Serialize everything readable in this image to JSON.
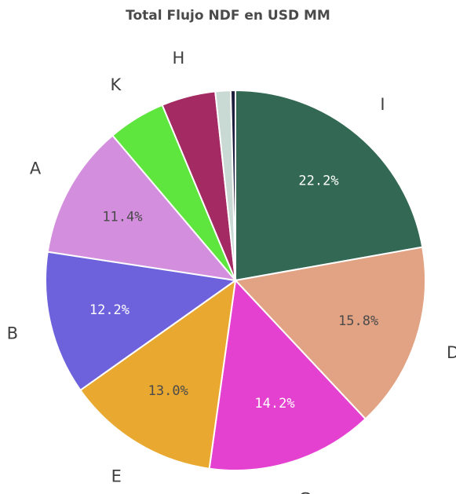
{
  "chart_data": {
    "type": "pie",
    "title": "Total Flujo NDF en USD MM",
    "slices": [
      {
        "label": "I",
        "value": 22.2,
        "value_label": "22.2%",
        "color": "#336854",
        "text_color": "#ffffff"
      },
      {
        "label": "D",
        "value": 15.8,
        "value_label": "15.8%",
        "color": "#e1a384",
        "text_color": "#4a4a4a"
      },
      {
        "label": "G",
        "value": 14.2,
        "value_label": "14.2%",
        "color": "#e441d1",
        "text_color": "#ffffff"
      },
      {
        "label": "E",
        "value": 13.0,
        "value_label": "13.0%",
        "color": "#e9a931",
        "text_color": "#4a4a4a"
      },
      {
        "label": "B",
        "value": 12.2,
        "value_label": "12.2%",
        "color": "#6e62dc",
        "text_color": "#ffffff"
      },
      {
        "label": "A",
        "value": 11.4,
        "value_label": "11.4%",
        "color": "#d38fdd",
        "text_color": "#4a4a4a"
      },
      {
        "label": "K",
        "value": 4.9,
        "value_label": "",
        "color": "#5ee63f",
        "text_color": "#4a4a4a"
      },
      {
        "label": "H",
        "value": 4.6,
        "value_label": "",
        "color": "#a42a63",
        "text_color": "#ffffff"
      },
      {
        "label": "",
        "value": 1.3,
        "value_label": "",
        "color": "#c9d9d3",
        "text_color": "#4a4a4a"
      },
      {
        "label": "",
        "value": 0.4,
        "value_label": "",
        "color": "#1d1d3d",
        "text_color": "#ffffff"
      }
    ]
  }
}
